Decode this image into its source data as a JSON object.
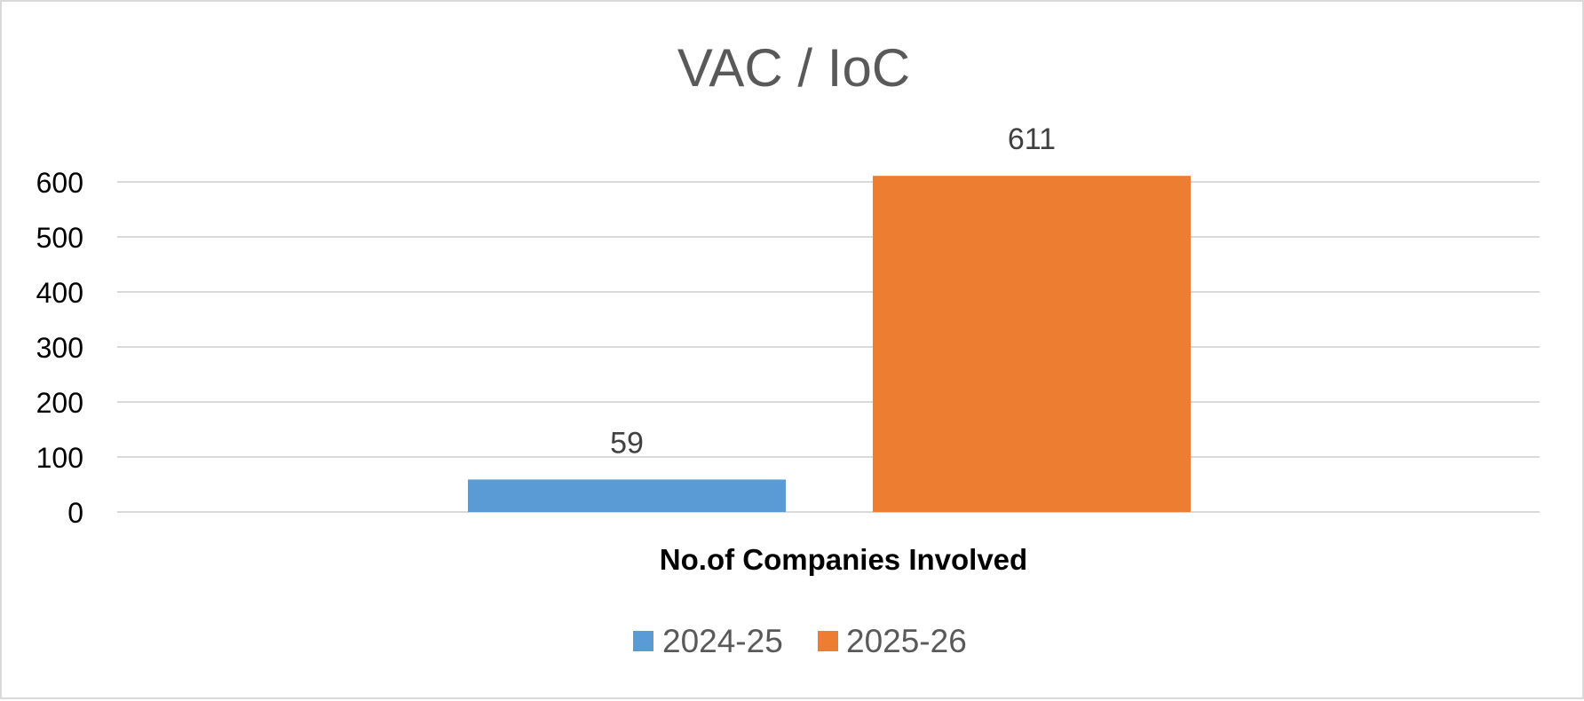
{
  "chart_data": {
    "type": "bar",
    "title": "VAC / IoC",
    "categories": [
      "No.of Companies Involved"
    ],
    "series": [
      {
        "name": "2024-25",
        "values": [
          59
        ],
        "color": "#5b9bd5"
      },
      {
        "name": "2025-26",
        "values": [
          611
        ],
        "color": "#ed7d31"
      }
    ],
    "ylim": [
      0,
      600
    ],
    "yticks": [
      0,
      100,
      200,
      300,
      400,
      500,
      600
    ],
    "grid": true,
    "legend": "bottom",
    "data_labels": true
  }
}
